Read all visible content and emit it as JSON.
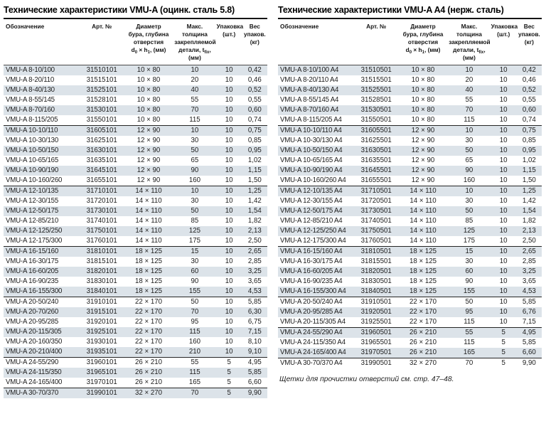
{
  "colors": {
    "row_shade": "#dce3e9",
    "rule_dark": "#141414",
    "text": "#1d1d1d"
  },
  "tables": [
    {
      "title": "Технические характеристики VMU-A (оцинк. сталь 5.8)",
      "columns": [
        "Обозначение",
        "Арт. №",
        "Диаметр\nбура, глубина\nотверстия\nd{0} × h{1}, (мм)",
        "Макс. толщина\nзакрепляемой\nдетали, t{fix},\n(мм)",
        "Упаковка\n(шт.)",
        "Вес\nупаков.\n(кг)"
      ],
      "groups": [
        [
          [
            "VMU-A 8-10/100",
            "31510101",
            "10 × 80",
            "10",
            "10",
            "0,42"
          ],
          [
            "VMU-A 8-20/110",
            "31515101",
            "10 × 80",
            "20",
            "10",
            "0,46"
          ],
          [
            "VMU-A 8-40/130",
            "31525101",
            "10 × 80",
            "40",
            "10",
            "0,52"
          ],
          [
            "VMU-A 8-55/145",
            "31528101",
            "10 × 80",
            "55",
            "10",
            "0,55"
          ],
          [
            "VMU-A 8-70/160",
            "31530101",
            "10 × 80",
            "70",
            "10",
            "0,60"
          ],
          [
            "VMU-A 8-115/205",
            "31550101",
            "10 × 80",
            "115",
            "10",
            "0,74"
          ]
        ],
        [
          [
            "VMU-A 10-10/110",
            "31605101",
            "12 × 90",
            "10",
            "10",
            "0,75"
          ],
          [
            "VMU-A 10-30/130",
            "31625101",
            "12 × 90",
            "30",
            "10",
            "0,85"
          ],
          [
            "VMU-A 10-50/150",
            "31630101",
            "12 × 90",
            "50",
            "10",
            "0,95"
          ],
          [
            "VMU-A 10-65/165",
            "31635101",
            "12 × 90",
            "65",
            "10",
            "1,02"
          ],
          [
            "VMU-A 10-90/190",
            "31645101",
            "12 × 90",
            "90",
            "10",
            "1,15"
          ],
          [
            "VMU-A 10-160/260",
            "31655101",
            "12 × 90",
            "160",
            "10",
            "1,50"
          ]
        ],
        [
          [
            "VMU-A 12-10/135",
            "31710101",
            "14 × 110",
            "10",
            "10",
            "1,25"
          ],
          [
            "VMU-A 12-30/155",
            "31720101",
            "14 × 110",
            "30",
            "10",
            "1,42"
          ],
          [
            "VMU-A 12-50/175",
            "31730101",
            "14 × 110",
            "50",
            "10",
            "1,54"
          ],
          [
            "VMU-A 12-85/210",
            "31740101",
            "14 × 110",
            "85",
            "10",
            "1,82"
          ],
          [
            "VMU-A 12-125/250",
            "31750101",
            "14 × 110",
            "125",
            "10",
            "2,13"
          ],
          [
            "VMU-A 12-175/300",
            "31760101",
            "14 × 110",
            "175",
            "10",
            "2,50"
          ]
        ],
        [
          [
            "VMU-A 16-15/160",
            "31810101",
            "18 × 125",
            "15",
            "10",
            "2,65"
          ],
          [
            "VMU-A 16-30/175",
            "31815101",
            "18 × 125",
            "30",
            "10",
            "2,85"
          ],
          [
            "VMU-A 16-60/205",
            "31820101",
            "18 × 125",
            "60",
            "10",
            "3,25"
          ],
          [
            "VMU-A 16-90/235",
            "31830101",
            "18 × 125",
            "90",
            "10",
            "3,65"
          ],
          [
            "VMU-A 16-155/300",
            "31840101",
            "18 × 125",
            "155",
            "10",
            "4,53"
          ]
        ],
        [
          [
            "VMU-A 20-50/240",
            "31910101",
            "22 × 170",
            "50",
            "10",
            "5,85"
          ],
          [
            "VMU-A 20-70/260",
            "31915101",
            "22 × 170",
            "70",
            "10",
            "6,30"
          ],
          [
            "VMU-A 20-95/285",
            "31920101",
            "22 × 170",
            "95",
            "10",
            "6,75"
          ],
          [
            "VMU-A 20-115/305",
            "31925101",
            "22 × 170",
            "115",
            "10",
            "7,15"
          ],
          [
            "VMU-A 20-160/350",
            "31930101",
            "22 × 170",
            "160",
            "10",
            "8,10"
          ],
          [
            "VMU-A 20-210/400",
            "31935101",
            "22 × 170",
            "210",
            "10",
            "9,10"
          ]
        ],
        [
          [
            "VMU-A 24-55/290",
            "31960101",
            "26 × 210",
            "55",
            "5",
            "4,95"
          ],
          [
            "VMU-A 24-115/350",
            "31965101",
            "26 × 210",
            "115",
            "5",
            "5,85"
          ],
          [
            "VMU-A 24-165/400",
            "31970101",
            "26 × 210",
            "165",
            "5",
            "6,60"
          ]
        ],
        [
          [
            "VMU-A 30-70/370",
            "31990101",
            "32 × 270",
            "70",
            "5",
            "9,90"
          ]
        ]
      ]
    },
    {
      "title": "Технические характеристики VMU-A A4 (нерж. сталь)",
      "columns": [
        "Обозначение",
        "Арт. №",
        "Диаметр\nбура, глубина\nотверстия\nd{0} × h{1}, (мм)",
        "Макс. толщина\nзакрепляемой\nдетали, t{fix},\n(мм)",
        "Упаковка\n(шт.)",
        "Вес\nупаков.\n(кг)"
      ],
      "groups": [
        [
          [
            "VMU-A 8-10/100 A4",
            "31510501",
            "10 × 80",
            "10",
            "10",
            "0,42"
          ],
          [
            "VMU-A 8-20/110 A4",
            "31515501",
            "10 × 80",
            "20",
            "10",
            "0,46"
          ],
          [
            "VMU-A 8-40/130 A4",
            "31525501",
            "10 × 80",
            "40",
            "10",
            "0,52"
          ],
          [
            "VMU-A 8-55/145 A4",
            "31528501",
            "10 × 80",
            "55",
            "10",
            "0,55"
          ],
          [
            "VMU-A 8-70/160 A4",
            "31530501",
            "10 × 80",
            "70",
            "10",
            "0,60"
          ],
          [
            "VMU-A 8-115/205 A4",
            "31550501",
            "10 × 80",
            "115",
            "10",
            "0,74"
          ]
        ],
        [
          [
            "VMU-A 10-10/110 A4",
            "31605501",
            "12 × 90",
            "10",
            "10",
            "0,75"
          ],
          [
            "VMU-A 10-30/130 A4",
            "31625501",
            "12 × 90",
            "30",
            "10",
            "0,85"
          ],
          [
            "VMU-A 10-50/150 A4",
            "31630501",
            "12 × 90",
            "50",
            "10",
            "0,95"
          ],
          [
            "VMU-A 10-65/165 A4",
            "31635501",
            "12 × 90",
            "65",
            "10",
            "1,02"
          ],
          [
            "VMU-A 10-90/190 A4",
            "31645501",
            "12 × 90",
            "90",
            "10",
            "1,15"
          ],
          [
            "VMU-A 10-160/260 A4",
            "31655501",
            "12 × 90",
            "160",
            "10",
            "1,50"
          ]
        ],
        [
          [
            "VMU-A 12-10/135 A4",
            "31710501",
            "14 × 110",
            "10",
            "10",
            "1,25"
          ],
          [
            "VMU-A 12-30/155 A4",
            "31720501",
            "14 × 110",
            "30",
            "10",
            "1,42"
          ],
          [
            "VMU-A 12-50/175 A4",
            "31730501",
            "14 × 110",
            "50",
            "10",
            "1,54"
          ],
          [
            "VMU-A 12-85/210 A4",
            "31740501",
            "14 × 110",
            "85",
            "10",
            "1,82"
          ],
          [
            "VMU-A 12-125/250 A4",
            "31750501",
            "14 × 110",
            "125",
            "10",
            "2,13"
          ],
          [
            "VMU-A 12-175/300 A4",
            "31760501",
            "14 × 110",
            "175",
            "10",
            "2,50"
          ]
        ],
        [
          [
            "VMU-A 16-15/160 A4",
            "31810501",
            "18 × 125",
            "15",
            "10",
            "2,65"
          ],
          [
            "VMU-A 16-30/175 A4",
            "31815501",
            "18 × 125",
            "30",
            "10",
            "2,85"
          ],
          [
            "VMU-A 16-60/205 A4",
            "31820501",
            "18 × 125",
            "60",
            "10",
            "3,25"
          ],
          [
            "VMU-A 16-90/235 A4",
            "31830501",
            "18 × 125",
            "90",
            "10",
            "3,65"
          ],
          [
            "VMU-A 16-155/300 A4",
            "31840501",
            "18 × 125",
            "155",
            "10",
            "4,53"
          ]
        ],
        [
          [
            "VMU-A 20-50/240 A4",
            "31910501",
            "22 × 170",
            "50",
            "10",
            "5,85"
          ],
          [
            "VMU-A 20-95/285 A4",
            "31920501",
            "22 × 170",
            "95",
            "10",
            "6,76"
          ],
          [
            "VMU-A 20-115/305 A4",
            "31925501",
            "22 × 170",
            "115",
            "10",
            "7,15"
          ]
        ],
        [
          [
            "VMU-A 24-55/290 A4",
            "31960501",
            "26 × 210",
            "55",
            "5",
            "4,95"
          ],
          [
            "VMU-A 24-115/350 A4",
            "31965501",
            "26 × 210",
            "115",
            "5",
            "5,85"
          ],
          [
            "VMU-A 24-165/400 A4",
            "31970501",
            "26 × 210",
            "165",
            "5",
            "6,60"
          ]
        ],
        [
          [
            "VMU-A 30-70/370 A4",
            "31990501",
            "32 × 270",
            "70",
            "5",
            "9,90"
          ]
        ]
      ],
      "footnote": "Щетки для прочистки отверстий см. стр. 47–48."
    }
  ]
}
